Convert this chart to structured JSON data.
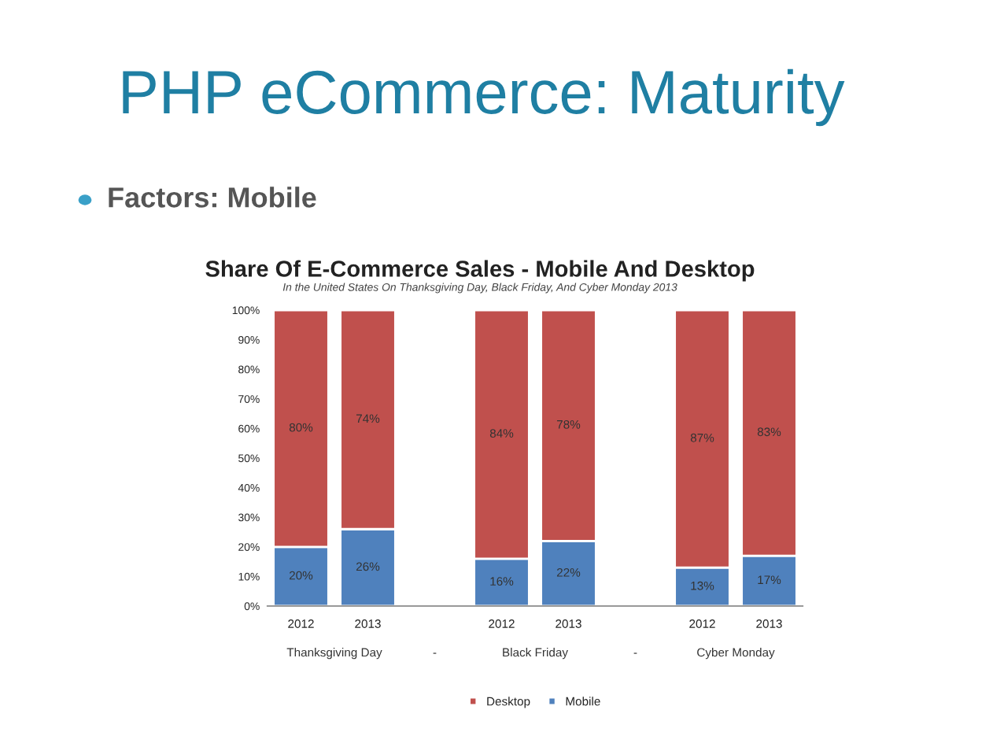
{
  "chart_data": {
    "type": "bar",
    "stacked": true,
    "title": "Share Of E-Commerce Sales - Mobile And Desktop",
    "subtitle": "In the United States On Thanksgiving Day, Black Friday, And Cyber Monday 2013",
    "categories": [
      "2012",
      "2013",
      null,
      "2012",
      "2013",
      null,
      "2012",
      "2013"
    ],
    "series": [
      {
        "name": "Mobile",
        "color": "#4f81bd",
        "values": [
          20,
          26,
          null,
          16,
          22,
          null,
          13,
          17
        ],
        "value_labels": [
          "20%",
          "26%",
          null,
          "16%",
          "22%",
          null,
          "13%",
          "17%"
        ]
      },
      {
        "name": "Desktop",
        "color": "#c0504d",
        "values": [
          80,
          74,
          null,
          84,
          78,
          null,
          87,
          83
        ],
        "value_labels": [
          "80%",
          "74%",
          null,
          "84%",
          "78%",
          null,
          "87%",
          "83%"
        ]
      }
    ],
    "ylim": [
      0,
      100
    ],
    "yticks": [
      {
        "value": 0,
        "label": "0%"
      },
      {
        "value": 10,
        "label": "10%"
      },
      {
        "value": 20,
        "label": "20%"
      },
      {
        "value": 30,
        "label": "30%"
      },
      {
        "value": 40,
        "label": "40%"
      },
      {
        "value": 50,
        "label": "50%"
      },
      {
        "value": 60,
        "label": "60%"
      },
      {
        "value": 70,
        "label": "70%"
      },
      {
        "value": 80,
        "label": "80%"
      },
      {
        "value": 90,
        "label": "90%"
      },
      {
        "value": 100,
        "label": "100%"
      }
    ],
    "legend": "bottom",
    "annotations": [
      "PHP eCommerce: Maturity",
      "Factors: Mobile",
      "Thanksgiving Day",
      "-",
      "Black Friday",
      "-",
      "Cyber Monday"
    ]
  }
}
